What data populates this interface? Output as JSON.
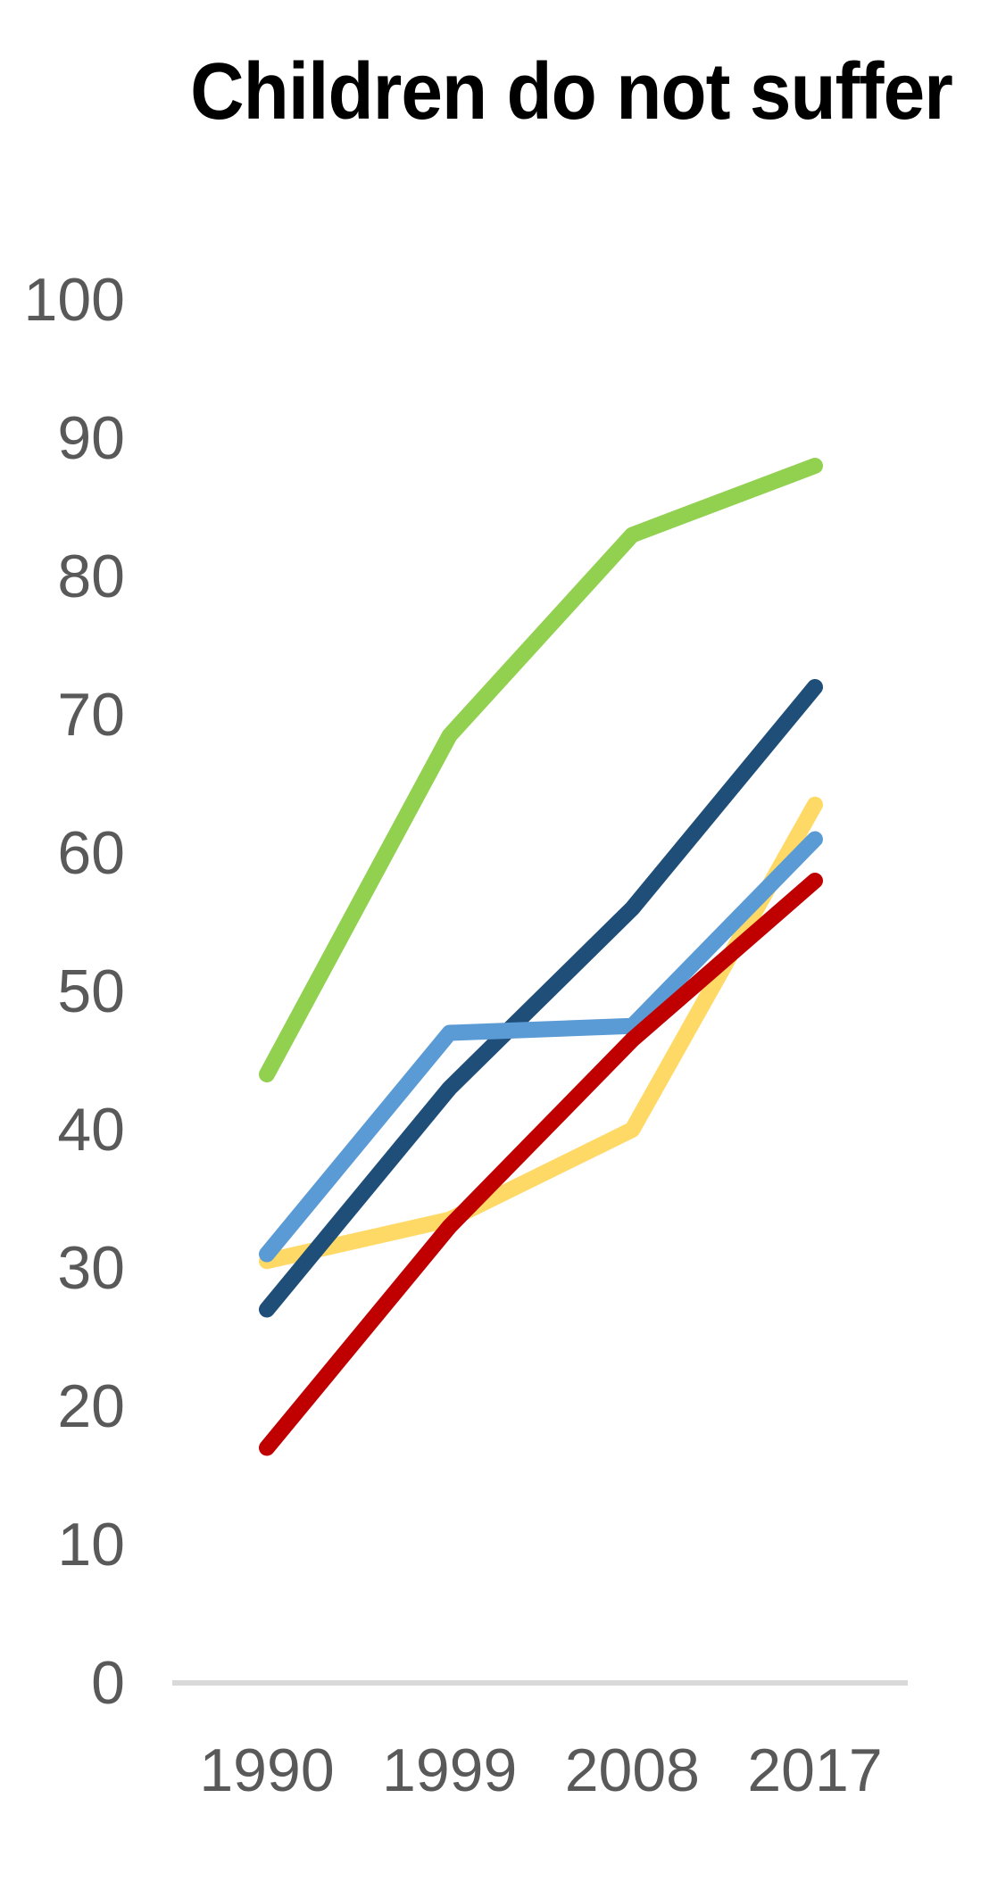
{
  "chart_data": {
    "type": "line",
    "title": "Children do not suffer",
    "categories": [
      "1990",
      "1999",
      "2008",
      "2017"
    ],
    "series": [
      {
        "name": "yellow",
        "color": "#FFD966",
        "values": [
          30.5,
          33.5,
          40,
          63.5
        ]
      },
      {
        "name": "dark-blue",
        "color": "#1F4E79",
        "values": [
          27,
          43,
          56,
          72
        ]
      },
      {
        "name": "light-blue",
        "color": "#5B9BD5",
        "values": [
          31,
          47,
          47.5,
          61
        ]
      },
      {
        "name": "red",
        "color": "#C00000",
        "values": [
          17,
          33,
          46.5,
          58
        ]
      },
      {
        "name": "green",
        "color": "#92D050",
        "values": [
          44,
          68.5,
          83,
          88
        ]
      }
    ],
    "xlabel": "",
    "ylabel": "",
    "ylim": [
      0,
      100
    ],
    "yticks": [
      0,
      10,
      20,
      30,
      40,
      50,
      60,
      70,
      80,
      90,
      100
    ],
    "grid": false,
    "legend": false,
    "colors": {
      "axis_line": "#D9D9D9",
      "tick_label": "#595959",
      "title_text": "#000000",
      "background": "#FFFFFF"
    }
  }
}
